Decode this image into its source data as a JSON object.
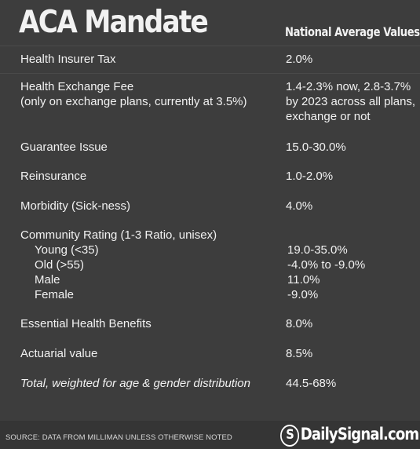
{
  "title": "ACA Mandate",
  "column_header": "National Average Values",
  "rows": [
    {
      "label": "Health Insurer Tax",
      "value": "2.0%"
    },
    {
      "label": "Health Exchange Fee",
      "label2": "(only on exchange plans, currently at 3.5%)",
      "value": "1.4-2.3% now, 2.8-3.7%",
      "value2": "by 2023 across all plans,",
      "value3": "exchange or not"
    },
    {
      "label": "Guarantee Issue",
      "value": "15.0-30.0%"
    },
    {
      "label": "Reinsurance",
      "value": "1.0-2.0%"
    },
    {
      "label": "Morbidity (Sick-ness)",
      "value": "4.0%"
    },
    {
      "label": "Community Rating (1-3 Ratio, unisex)",
      "sub": [
        {
          "label": "Young (<35)",
          "value": "19.0-35.0%"
        },
        {
          "label": "Old (>55)",
          "value": "-4.0% to -9.0%"
        },
        {
          "label": "Male",
          "value": "11.0%"
        },
        {
          "label": "Female",
          "value": "-9.0%"
        }
      ]
    },
    {
      "label": "Essential Health Benefits",
      "value": "8.0%"
    },
    {
      "label": "Actuarial value",
      "value": "8.5%"
    },
    {
      "label": "Total, weighted for age & gender distribution",
      "value": "44.5-68%"
    }
  ],
  "footer": {
    "source": "SOURCE: DATA FROM MILLIMAN UNLESS OTHERWISE NOTED",
    "brand_mark": "S",
    "brand_name": "DailySignal.com"
  }
}
